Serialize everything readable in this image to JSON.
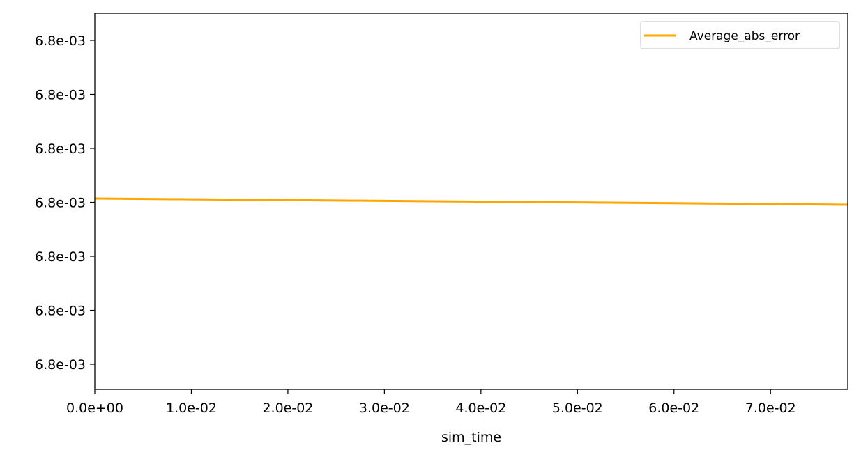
{
  "chart_data": {
    "type": "line",
    "title": "",
    "xlabel": "sim_time",
    "ylabel": "",
    "x_ticks": [
      0.0,
      0.01,
      0.02,
      0.03,
      0.04,
      0.05,
      0.06,
      0.07
    ],
    "x_tick_labels": [
      "0.0e+00",
      "1.0e-02",
      "2.0e-02",
      "3.0e-02",
      "4.0e-02",
      "5.0e-02",
      "6.0e-02",
      "7.0e-02"
    ],
    "y_tick_labels": [
      "6.8e-03",
      "6.8e-03",
      "6.8e-03",
      "6.8e-03",
      "6.8e-03",
      "6.8e-03",
      "6.8e-03"
    ],
    "xlim": [
      0.0,
      0.078
    ],
    "grid": false,
    "legend_position": "top-right",
    "series": [
      {
        "name": "Average_abs_error",
        "color": "#FFA500",
        "x": [
          0.0,
          0.01,
          0.02,
          0.03,
          0.04,
          0.05,
          0.06,
          0.07,
          0.078
        ],
        "y": [
          0.0068,
          0.0068,
          0.0068,
          0.0068,
          0.0068,
          0.0068,
          0.0068,
          0.0068,
          0.0068
        ],
        "trend": "slightly decreasing"
      }
    ]
  }
}
